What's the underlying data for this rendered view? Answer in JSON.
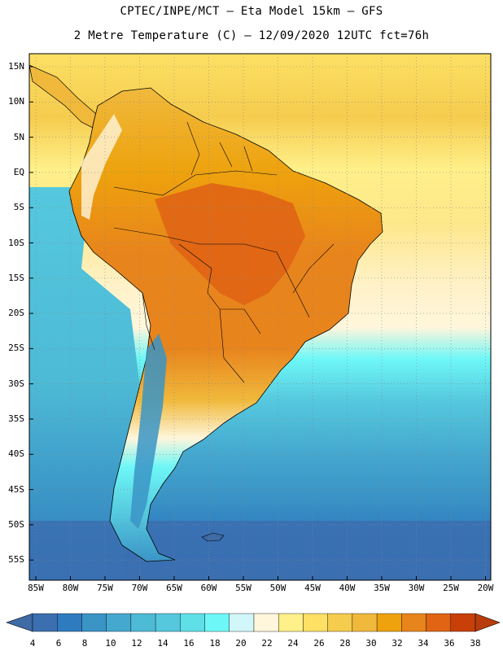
{
  "title": {
    "line1": "CPTEC/INPE/MCT –  Eta Model 15km – GFS",
    "line2": "2 Metre Temperature (C) – 12/09/2020 12UTC fct=76h"
  },
  "lat_labels": [
    "15N",
    "10N",
    "5N",
    "EQ",
    "5S",
    "10S",
    "15S",
    "20S",
    "25S",
    "30S",
    "35S",
    "40S",
    "45S",
    "50S",
    "55S"
  ],
  "lon_labels": [
    "85W",
    "80W",
    "75W",
    "70W",
    "65W",
    "60W",
    "55W",
    "50W",
    "45W",
    "40W",
    "35W",
    "30W",
    "25W",
    "20W"
  ],
  "colorbar": {
    "labels": [
      "4",
      "6",
      "8",
      "10",
      "12",
      "14",
      "16",
      "18",
      "20",
      "22",
      "24",
      "26",
      "28",
      "30",
      "32",
      "34",
      "36",
      "38"
    ],
    "colors": [
      "#3b6fb0",
      "#2f7bbf",
      "#3a94c6",
      "#45a8cf",
      "#4dbad6",
      "#55c8de",
      "#5fdfe8",
      "#6ef7f7",
      "#d2f7fa",
      "#fff6dc",
      "#fff08a",
      "#fde064",
      "#f5cc4e",
      "#f0b93c",
      "#eea20d",
      "#e8841c",
      "#e06414",
      "#c84008"
    ],
    "under_color": "#3e6aa6",
    "over_color": "#b83c0c"
  }
}
